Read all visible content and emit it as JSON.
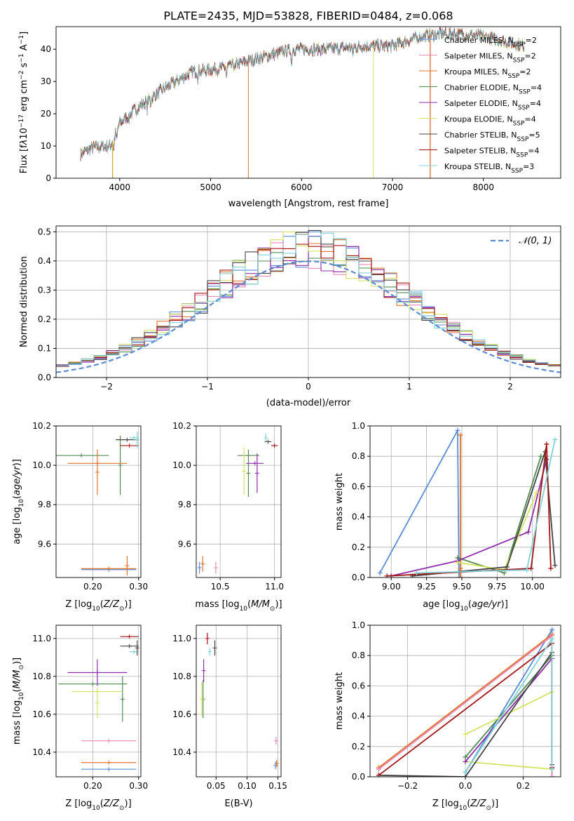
{
  "figure": {
    "title": "PLATE=2435, MJD=53828, FIBERID=0484, z=0.068"
  },
  "models": [
    {
      "name": "Chabrier MILES",
      "nssp": "2",
      "color": "#5b8bd6"
    },
    {
      "name": "Salpeter MILES",
      "nssp": "2",
      "color": "#e889b9"
    },
    {
      "name": "Kroupa MILES",
      "nssp": "2",
      "color": "#e0742a"
    },
    {
      "name": "Chabrier ELODIE",
      "nssp": "4",
      "color": "#4f8a4f"
    },
    {
      "name": "Salpeter ELODIE",
      "nssp": "4",
      "color": "#8e2dab"
    },
    {
      "name": "Kroupa ELODIE",
      "nssp": "4",
      "color": "#d6e35f"
    },
    {
      "name": "Chabrier STELIB",
      "nssp": "5",
      "color": "#444444"
    },
    {
      "name": "Salpeter STELIB",
      "nssp": "4",
      "color": "#a31515"
    },
    {
      "name": "Kroupa STELIB",
      "nssp": "3",
      "color": "#7fd3d8"
    }
  ],
  "chart_data": [
    {
      "type": "line",
      "id": "spectrum",
      "xlabel": "wavelength [Angstrom, rest frame]",
      "ylabel": "Flux [f_λ10^-17 erg cm^-2 s^-1 A^-1]",
      "xlim": [
        3300,
        8850
      ],
      "ylim": [
        0,
        47
      ],
      "xticks": [
        4000,
        5000,
        6000,
        7000,
        8000
      ],
      "yticks": [
        0,
        10,
        20,
        30,
        40
      ],
      "grid": false,
      "legend": "top-right",
      "continuum": [
        [
          3570,
          7.5
        ],
        [
          3700,
          9.5
        ],
        [
          3900,
          10
        ],
        [
          4000,
          17
        ],
        [
          4200,
          22
        ],
        [
          4500,
          28
        ],
        [
          4800,
          33
        ],
        [
          5100,
          34
        ],
        [
          5500,
          37
        ],
        [
          5900,
          40
        ],
        [
          6300,
          40
        ],
        [
          6700,
          41
        ],
        [
          7000,
          41
        ],
        [
          7300,
          44
        ],
        [
          7600,
          45
        ],
        [
          8000,
          44
        ],
        [
          8300,
          42
        ],
        [
          8450,
          41
        ]
      ]
    },
    {
      "type": "step",
      "id": "residuals",
      "xlabel": "(data-model)/error",
      "ylabel": "Normed distribution",
      "xlim": [
        -2.5,
        2.5
      ],
      "ylim": [
        0,
        0.52
      ],
      "xticks": [
        -2,
        -1,
        0,
        1,
        2
      ],
      "yticks": [
        0.0,
        0.1,
        0.2,
        0.3,
        0.4,
        0.5
      ],
      "grid": true,
      "legend": "top-right",
      "reference": {
        "label": "𝒩(0, 1)",
        "mean": 0,
        "sigma": 1,
        "color": "#5b8bd6"
      },
      "bins": 40
    },
    {
      "type": "scatter",
      "id": "age-vs-Z",
      "xlabel": "Z [log10(Z/Z⊙)]",
      "ylabel": "age [log10(age/yr)]",
      "xlim": [
        0.12,
        0.305
      ],
      "ylim": [
        9.43,
        10.2
      ],
      "xticks": [
        0.2,
        0.3
      ],
      "yticks": [
        9.6,
        9.8,
        10.0,
        10.2
      ],
      "grid": true,
      "points": [
        {
          "m": 0,
          "x": 0.235,
          "xe": 0.06,
          "y": 9.47,
          "ye": 0
        },
        {
          "m": 2,
          "x": 0.235,
          "xe": 0.06,
          "y": 9.475,
          "ye": 0
        },
        {
          "m": 2,
          "x": 0.275,
          "xe": 0,
          "y": 9.49,
          "ye": 0.05
        },
        {
          "m": 3,
          "x": 0.175,
          "xe": 0.06,
          "y": 10.05,
          "ye": 0
        },
        {
          "m": 3,
          "x": 0.26,
          "xe": 0,
          "y": 10.0,
          "ye": 0.15
        },
        {
          "m": 2,
          "x": 0.21,
          "xe": 0.065,
          "y": 10.01,
          "ye": 0
        },
        {
          "m": 2,
          "x": 0.21,
          "xe": 0,
          "y": 9.965,
          "ye": 0.115
        },
        {
          "m": 6,
          "x": 0.275,
          "xe": 0.025,
          "y": 10.13,
          "ye": 0
        },
        {
          "m": 7,
          "x": 0.28,
          "xe": 0.02,
          "y": 10.1,
          "ye": 0
        },
        {
          "m": 8,
          "x": 0.29,
          "xe": 0.01,
          "y": 10.14,
          "ye": 0
        },
        {
          "m": 8,
          "x": 0.297,
          "xe": 0,
          "y": 10.13,
          "ye": 0.04
        }
      ]
    },
    {
      "type": "scatter",
      "id": "age-vs-mass",
      "xlabel": "mass [log10(M/M⊙)]",
      "ylabel": "",
      "xlim": [
        10.28,
        11.06
      ],
      "ylim": [
        9.43,
        10.2
      ],
      "xticks": [
        10.5,
        11.0
      ],
      "yticks": [
        9.6,
        9.8,
        10.0,
        10.2
      ],
      "grid": true,
      "points": [
        {
          "m": 0,
          "x": 10.31,
          "xe": 0,
          "y": 9.48,
          "ye": 0.03
        },
        {
          "m": 2,
          "x": 10.34,
          "xe": 0,
          "y": 9.5,
          "ye": 0.04
        },
        {
          "m": 1,
          "x": 10.46,
          "xe": 0,
          "y": 9.48,
          "ye": 0.03
        },
        {
          "m": 3,
          "x": 10.76,
          "xe": 0.1,
          "y": 10.05,
          "ye": 0
        },
        {
          "m": 3,
          "x": 10.76,
          "xe": 0,
          "y": 9.96,
          "ye": 0.12
        },
        {
          "m": 5,
          "x": 10.72,
          "xe": 0,
          "y": 9.97,
          "ye": 0.12
        },
        {
          "m": 4,
          "x": 10.82,
          "xe": 0.08,
          "y": 10.01,
          "ye": 0
        },
        {
          "m": 4,
          "x": 10.84,
          "xe": 0,
          "y": 9.96,
          "ye": 0.1
        },
        {
          "m": 6,
          "x": 10.94,
          "xe": 0.03,
          "y": 10.12,
          "ye": 0
        },
        {
          "m": 7,
          "x": 11.0,
          "xe": 0.03,
          "y": 10.1,
          "ye": 0
        },
        {
          "m": 8,
          "x": 10.92,
          "xe": 0,
          "y": 10.14,
          "ye": 0.02
        }
      ]
    },
    {
      "type": "line",
      "id": "mass-weight-vs-age",
      "xlabel": "age [log10(age/yr)]",
      "ylabel": "mass weight",
      "xlim": [
        8.85,
        10.2
      ],
      "ylim": [
        0,
        1.0
      ],
      "xticks": [
        9.0,
        9.25,
        9.5,
        9.75,
        10.0
      ],
      "yticks": [
        0.0,
        0.2,
        0.4,
        0.6,
        0.8,
        1.0
      ],
      "grid": true,
      "series": [
        {
          "m": 0,
          "x": [
            8.92,
            9.47,
            9.48
          ],
          "y": [
            0.03,
            0.97,
            0.0
          ]
        },
        {
          "m": 2,
          "x": [
            9.49,
            9.49,
            9.49
          ],
          "y": [
            0.94,
            0.0,
            0.06
          ]
        },
        {
          "m": 3,
          "x": [
            9.47,
            9.8,
            10.06
          ],
          "y": [
            0.13,
            0.03,
            0.8
          ]
        },
        {
          "m": 4,
          "x": [
            9.0,
            9.47,
            9.97,
            10.1
          ],
          "y": [
            0.01,
            0.11,
            0.3,
            0.78
          ]
        },
        {
          "m": 5,
          "x": [
            9.47,
            9.8,
            10.03
          ],
          "y": [
            0.1,
            0.05,
            0.56
          ]
        },
        {
          "m": 6,
          "x": [
            9.15,
            9.82,
            10.09,
            10.16
          ],
          "y": [
            0.01,
            0.07,
            0.83,
            0.08
          ]
        },
        {
          "m": 7,
          "x": [
            8.97,
            9.99,
            10.1,
            10.13
          ],
          "y": [
            0.01,
            0.06,
            0.88,
            0.06
          ]
        },
        {
          "m": 8,
          "x": [
            9.18,
            9.96,
            10.16
          ],
          "y": [
            0.03,
            0.05,
            0.91
          ]
        }
      ]
    },
    {
      "type": "scatter",
      "id": "mass-vs-Z",
      "xlabel": "Z [log10(Z/Z⊙)]",
      "ylabel": "mass [log10(M/M⊙)]",
      "xlim": [
        0.12,
        0.305
      ],
      "ylim": [
        10.27,
        11.07
      ],
      "xticks": [
        0.2,
        0.3
      ],
      "yticks": [
        10.4,
        10.6,
        10.8,
        11.0
      ],
      "grid": true,
      "points": [
        {
          "m": 0,
          "x": 0.235,
          "xe": 0.06,
          "y": 10.31,
          "ye": 0
        },
        {
          "m": 2,
          "x": 0.235,
          "xe": 0.06,
          "y": 10.345,
          "ye": 0
        },
        {
          "m": 1,
          "x": 0.235,
          "xe": 0.06,
          "y": 10.46,
          "ye": 0
        },
        {
          "m": 3,
          "x": 0.2,
          "xe": 0.075,
          "y": 10.76,
          "ye": 0
        },
        {
          "m": 3,
          "x": 0.265,
          "xe": 0,
          "y": 10.68,
          "ye": 0.12
        },
        {
          "m": 5,
          "x": 0.21,
          "xe": 0.055,
          "y": 10.72,
          "ye": 0
        },
        {
          "m": 5,
          "x": 0.21,
          "xe": 0,
          "y": 10.66,
          "ye": 0.08
        },
        {
          "m": 4,
          "x": 0.21,
          "xe": 0.065,
          "y": 10.82,
          "ye": 0
        },
        {
          "m": 4,
          "x": 0.21,
          "xe": 0,
          "y": 10.82,
          "ye": 0.07
        },
        {
          "m": 6,
          "x": 0.28,
          "xe": 0.02,
          "y": 10.96,
          "ye": 0
        },
        {
          "m": 7,
          "x": 0.28,
          "xe": 0.02,
          "y": 11.01,
          "ye": 0
        },
        {
          "m": 8,
          "x": 0.29,
          "xe": 0.01,
          "y": 10.93,
          "ye": 0
        },
        {
          "m": 6,
          "x": 0.297,
          "xe": 0,
          "y": 10.95,
          "ye": 0.04
        }
      ]
    },
    {
      "type": "scatter",
      "id": "mass-vs-EBV",
      "xlabel": "E(B-V)",
      "ylabel": "",
      "xlim": [
        0.018,
        0.155
      ],
      "ylim": [
        10.27,
        11.07
      ],
      "xticks": [
        0.05,
        0.1,
        0.15
      ],
      "yticks": [
        10.4,
        10.6,
        10.8,
        11.0
      ],
      "grid": true,
      "points": [
        {
          "m": 0,
          "x": 0.146,
          "xe": 0,
          "y": 10.33,
          "ye": 0.02
        },
        {
          "m": 2,
          "x": 0.148,
          "xe": 0,
          "y": 10.34,
          "ye": 0.02
        },
        {
          "m": 1,
          "x": 0.147,
          "xe": 0,
          "y": 10.46,
          "ye": 0.02
        },
        {
          "m": 3,
          "x": 0.029,
          "xe": 0,
          "y": 10.68,
          "ye": 0.1
        },
        {
          "m": 5,
          "x": 0.027,
          "xe": 0,
          "y": 10.68,
          "ye": 0.09
        },
        {
          "m": 4,
          "x": 0.03,
          "xe": 0,
          "y": 10.83,
          "ye": 0.06
        },
        {
          "m": 8,
          "x": 0.04,
          "xe": 0,
          "y": 10.93,
          "ye": 0.02
        },
        {
          "m": 7,
          "x": 0.036,
          "xe": 0,
          "y": 11.0,
          "ye": 0.03
        },
        {
          "m": 6,
          "x": 0.048,
          "xe": 0,
          "y": 10.95,
          "ye": 0.04
        }
      ]
    },
    {
      "type": "line",
      "id": "mass-weight-vs-Z",
      "xlabel": "Z [log10(Z/Z⊙)]",
      "ylabel": "mass weight",
      "xlim": [
        -0.33,
        0.33
      ],
      "ylim": [
        0,
        1.0
      ],
      "xticks": [
        -0.2,
        0.0,
        0.2
      ],
      "yticks": [
        0.0,
        0.2,
        0.4,
        0.6,
        0.8,
        1.0
      ],
      "grid": true,
      "series": [
        {
          "m": 0,
          "x": [
            0.0,
            0.3,
            0.3
          ],
          "y": [
            0.03,
            0.97,
            0.0
          ]
        },
        {
          "m": 2,
          "x": [
            -0.3,
            0.3,
            0.3
          ],
          "y": [
            0.06,
            0.94,
            0.0
          ]
        },
        {
          "m": 1,
          "x": [
            -0.3,
            0.3,
            0.3
          ],
          "y": [
            0.05,
            0.93,
            0.0
          ]
        },
        {
          "m": 3,
          "x": [
            0.0,
            0.3,
            0.3
          ],
          "y": [
            0.13,
            0.8,
            0.05
          ]
        },
        {
          "m": 5,
          "x": [
            0.0,
            0.3,
            0.3,
            0.0
          ],
          "y": [
            0.28,
            0.56,
            0.05,
            0.1
          ]
        },
        {
          "m": 4,
          "x": [
            0.0,
            0.3,
            0.3
          ],
          "y": [
            0.1,
            0.78,
            0.06
          ]
        },
        {
          "m": 6,
          "x": [
            -0.3,
            0.0,
            0.3,
            0.3
          ],
          "y": [
            0.01,
            0.0,
            0.82,
            0.08
          ]
        },
        {
          "m": 7,
          "x": [
            -0.3,
            0.3,
            0.3
          ],
          "y": [
            0.01,
            0.88,
            0.06
          ]
        },
        {
          "m": 8,
          "x": [
            0.0,
            0.3,
            0.3
          ],
          "y": [
            0.03,
            0.91,
            0.05
          ]
        }
      ]
    }
  ]
}
